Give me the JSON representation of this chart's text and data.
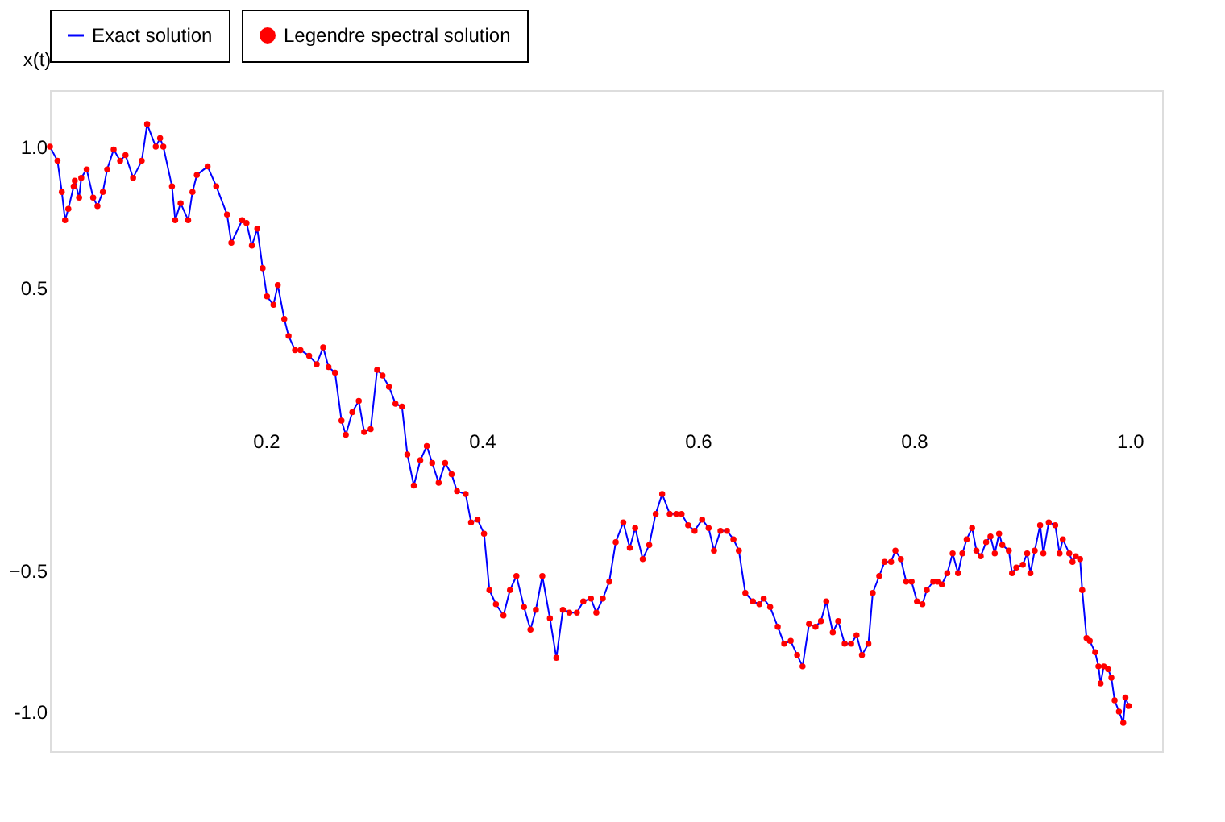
{
  "chart_data": {
    "type": "line",
    "ylabel": "x(t)",
    "x": [
      0,
      0.007,
      0.011,
      0.014,
      0.017,
      0.022,
      0.023,
      0.027,
      0.029,
      0.034,
      0.04,
      0.044,
      0.049,
      0.053,
      0.059,
      0.065,
      0.07,
      0.077,
      0.085,
      0.09,
      0.098,
      0.102,
      0.105,
      0.113,
      0.116,
      0.121,
      0.128,
      0.132,
      0.136,
      0.146,
      0.154,
      0.164,
      0.168,
      0.178,
      0.182,
      0.187,
      0.192,
      0.197,
      0.201,
      0.207,
      0.211,
      0.217,
      0.221,
      0.227,
      0.232,
      0.24,
      0.247,
      0.253,
      0.258,
      0.264,
      0.27,
      0.274,
      0.28,
      0.286,
      0.291,
      0.297,
      0.303,
      0.308,
      0.314,
      0.32,
      0.326,
      0.331,
      0.337,
      0.343,
      0.349,
      0.354,
      0.36,
      0.366,
      0.372,
      0.377,
      0.385,
      0.39,
      0.396,
      0.402,
      0.407,
      0.413,
      0.42,
      0.426,
      0.432,
      0.439,
      0.445,
      0.45,
      0.456,
      0.463,
      0.469,
      0.475,
      0.481,
      0.488,
      0.494,
      0.501,
      0.506,
      0.512,
      0.518,
      0.524,
      0.531,
      0.537,
      0.542,
      0.549,
      0.555,
      0.561,
      0.567,
      0.574,
      0.58,
      0.585,
      0.591,
      0.597,
      0.604,
      0.61,
      0.615,
      0.621,
      0.627,
      0.633,
      0.638,
      0.644,
      0.651,
      0.657,
      0.661,
      0.667,
      0.674,
      0.68,
      0.686,
      0.692,
      0.697,
      0.703,
      0.709,
      0.714,
      0.719,
      0.725,
      0.73,
      0.736,
      0.742,
      0.747,
      0.752,
      0.758,
      0.762,
      0.768,
      0.773,
      0.779,
      0.783,
      0.788,
      0.793,
      0.798,
      0.803,
      0.808,
      0.812,
      0.818,
      0.822,
      0.826,
      0.831,
      0.836,
      0.841,
      0.845,
      0.849,
      0.854,
      0.858,
      0.862,
      0.867,
      0.871,
      0.875,
      0.879,
      0.882,
      0.888,
      0.891,
      0.895,
      0.901,
      0.905,
      0.908,
      0.912,
      0.917,
      0.92,
      0.925,
      0.931,
      0.935,
      0.938,
      0.944,
      0.947,
      0.95,
      0.954,
      0.956,
      0.96,
      0.963,
      0.968,
      0.971,
      0.973,
      0.976,
      0.98,
      0.983,
      0.986,
      0.99,
      0.994,
      0.996,
      0.999
    ],
    "series": [
      {
        "name": "Exact solution",
        "color": "#0000ff",
        "line_style": "solid",
        "values": [
          1.0,
          0.95,
          0.84,
          0.74,
          0.78,
          0.86,
          0.88,
          0.82,
          0.89,
          0.92,
          0.82,
          0.79,
          0.84,
          0.92,
          0.99,
          0.95,
          0.97,
          0.89,
          0.95,
          1.08,
          1.0,
          1.03,
          1.0,
          0.86,
          0.74,
          0.8,
          0.74,
          0.84,
          0.9,
          0.93,
          0.86,
          0.76,
          0.66,
          0.74,
          0.73,
          0.65,
          0.71,
          0.57,
          0.47,
          0.44,
          0.51,
          0.39,
          0.33,
          0.28,
          0.28,
          0.26,
          0.23,
          0.29,
          0.22,
          0.2,
          0.03,
          -0.02,
          0.06,
          0.1,
          -0.01,
          0.0,
          0.21,
          0.19,
          0.15,
          0.09,
          0.08,
          -0.09,
          -0.2,
          -0.11,
          -0.06,
          -0.12,
          -0.19,
          -0.12,
          -0.16,
          -0.22,
          -0.23,
          -0.33,
          -0.32,
          -0.37,
          -0.57,
          -0.62,
          -0.66,
          -0.57,
          -0.52,
          -0.63,
          -0.71,
          -0.64,
          -0.52,
          -0.67,
          -0.81,
          -0.64,
          -0.65,
          -0.65,
          -0.61,
          -0.6,
          -0.65,
          -0.6,
          -0.54,
          -0.4,
          -0.33,
          -0.42,
          -0.35,
          -0.46,
          -0.41,
          -0.3,
          -0.23,
          -0.3,
          -0.3,
          -0.3,
          -0.34,
          -0.36,
          -0.32,
          -0.35,
          -0.43,
          -0.36,
          -0.36,
          -0.39,
          -0.43,
          -0.58,
          -0.61,
          -0.62,
          -0.6,
          -0.63,
          -0.7,
          -0.76,
          -0.75,
          -0.8,
          -0.84,
          -0.69,
          -0.7,
          -0.68,
          -0.61,
          -0.72,
          -0.68,
          -0.76,
          -0.76,
          -0.73,
          -0.8,
          -0.76,
          -0.58,
          -0.52,
          -0.47,
          -0.47,
          -0.43,
          -0.46,
          -0.54,
          -0.54,
          -0.61,
          -0.62,
          -0.57,
          -0.54,
          -0.54,
          -0.55,
          -0.51,
          -0.44,
          -0.51,
          -0.44,
          -0.39,
          -0.35,
          -0.43,
          -0.45,
          -0.4,
          -0.38,
          -0.44,
          -0.37,
          -0.41,
          -0.43,
          -0.51,
          -0.49,
          -0.48,
          -0.44,
          -0.51,
          -0.43,
          -0.34,
          -0.44,
          -0.33,
          -0.34,
          -0.44,
          -0.39,
          -0.44,
          -0.47,
          -0.45,
          -0.46,
          -0.57,
          -0.74,
          -0.75,
          -0.79,
          -0.84,
          -0.9,
          -0.84,
          -0.85,
          -0.88,
          -0.96,
          -1.0,
          -1.04,
          -0.95,
          -0.98
        ]
      },
      {
        "name": "Legendre spectral solution",
        "type": "scatter",
        "color": "#ff0000",
        "marker": "circle",
        "values": [
          1.0,
          0.95,
          0.84,
          0.74,
          0.78,
          0.86,
          0.88,
          0.82,
          0.89,
          0.92,
          0.82,
          0.79,
          0.84,
          0.92,
          0.99,
          0.95,
          0.97,
          0.89,
          0.95,
          1.08,
          1.0,
          1.03,
          1.0,
          0.86,
          0.74,
          0.8,
          0.74,
          0.84,
          0.9,
          0.93,
          0.86,
          0.76,
          0.66,
          0.74,
          0.73,
          0.65,
          0.71,
          0.57,
          0.47,
          0.44,
          0.51,
          0.39,
          0.33,
          0.28,
          0.28,
          0.26,
          0.23,
          0.29,
          0.22,
          0.2,
          0.03,
          -0.02,
          0.06,
          0.1,
          -0.01,
          0.0,
          0.21,
          0.19,
          0.15,
          0.09,
          0.08,
          -0.09,
          -0.2,
          -0.11,
          -0.06,
          -0.12,
          -0.19,
          -0.12,
          -0.16,
          -0.22,
          -0.23,
          -0.33,
          -0.32,
          -0.37,
          -0.57,
          -0.62,
          -0.66,
          -0.57,
          -0.52,
          -0.63,
          -0.71,
          -0.64,
          -0.52,
          -0.67,
          -0.81,
          -0.64,
          -0.65,
          -0.65,
          -0.61,
          -0.6,
          -0.65,
          -0.6,
          -0.54,
          -0.4,
          -0.33,
          -0.42,
          -0.35,
          -0.46,
          -0.41,
          -0.3,
          -0.23,
          -0.3,
          -0.3,
          -0.3,
          -0.34,
          -0.36,
          -0.32,
          -0.35,
          -0.43,
          -0.36,
          -0.36,
          -0.39,
          -0.43,
          -0.58,
          -0.61,
          -0.62,
          -0.6,
          -0.63,
          -0.7,
          -0.76,
          -0.75,
          -0.8,
          -0.84,
          -0.69,
          -0.7,
          -0.68,
          -0.61,
          -0.72,
          -0.68,
          -0.76,
          -0.76,
          -0.73,
          -0.8,
          -0.76,
          -0.58,
          -0.52,
          -0.47,
          -0.47,
          -0.43,
          -0.46,
          -0.54,
          -0.54,
          -0.61,
          -0.62,
          -0.57,
          -0.54,
          -0.54,
          -0.55,
          -0.51,
          -0.44,
          -0.51,
          -0.44,
          -0.39,
          -0.35,
          -0.43,
          -0.45,
          -0.4,
          -0.38,
          -0.44,
          -0.37,
          -0.41,
          -0.43,
          -0.51,
          -0.49,
          -0.48,
          -0.44,
          -0.51,
          -0.43,
          -0.34,
          -0.44,
          -0.33,
          -0.34,
          -0.44,
          -0.39,
          -0.44,
          -0.47,
          -0.45,
          -0.46,
          -0.57,
          -0.74,
          -0.75,
          -0.79,
          -0.84,
          -0.9,
          -0.84,
          -0.85,
          -0.88,
          -0.96,
          -1.0,
          -1.04,
          -0.95,
          -0.98
        ]
      }
    ],
    "xlim": [
      0,
      1.03
    ],
    "ylim": [
      -1.14,
      1.2
    ],
    "xticks": [
      0.2,
      0.4,
      0.6,
      0.8,
      {
        "value": 1.0,
        "label": "1.0"
      }
    ],
    "yticks": [
      {
        "value": -1.0,
        "label": "-1.0"
      },
      -0.5,
      0.5,
      {
        "value": 1.0,
        "label": "1.0"
      }
    ],
    "grid": false,
    "legend": "top"
  }
}
